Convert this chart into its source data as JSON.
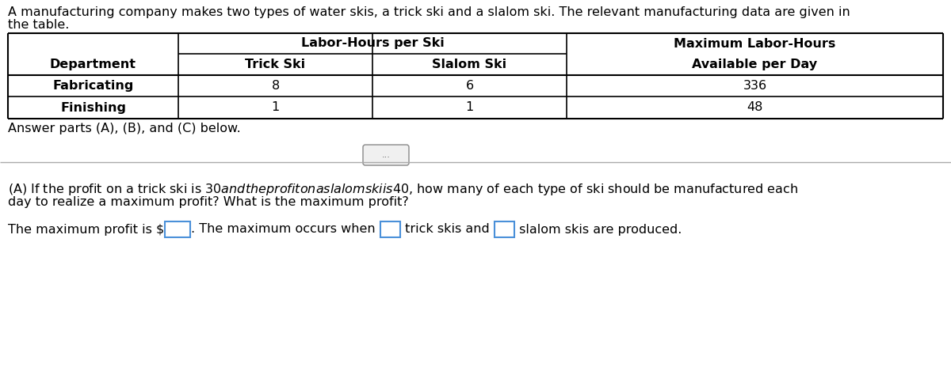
{
  "intro_text_line1": "A manufacturing company makes two types of water skis, a trick ski and a slalom ski. The relevant manufacturing data are given in",
  "intro_text_line2": "the table.",
  "answer_parts_text": "Answer parts (A), (B), and (C) below.",
  "part_a_text_line1": "(A) If the profit on a trick ski is $30 and the profit on a slalom ski is $40, how many of each type of ski should be manufactured each",
  "part_a_text_line2": "day to realize a maximum profit? What is the maximum profit?",
  "part_a_seg1": "The maximum profit is $",
  "part_a_seg2": ". The maximum occurs when ",
  "part_a_seg3": " trick skis and ",
  "part_a_seg4": " slalom skis are produced.",
  "table": {
    "rows": [
      [
        "Fabricating",
        "8",
        "6",
        "336"
      ],
      [
        "Finishing",
        "1",
        "1",
        "48"
      ]
    ]
  },
  "dots_button_text": "...",
  "background_color": "#ffffff",
  "text_color": "#000000",
  "table_border_color": "#000000",
  "input_box_color": "#4a90d9",
  "font_size": 11.5
}
